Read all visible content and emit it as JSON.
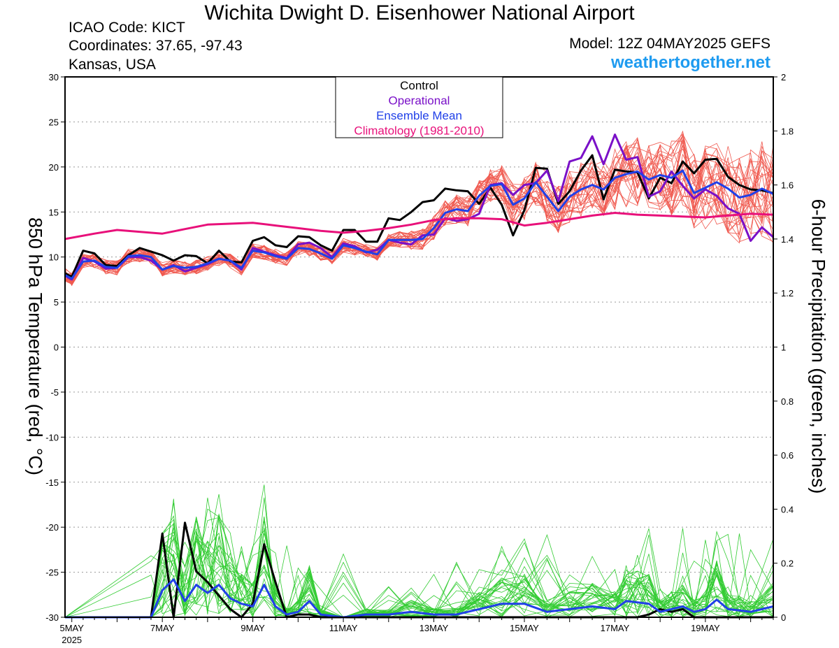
{
  "header": {
    "title": "Wichita Dwight D. Eisenhower National Airport",
    "icao": "ICAO Code: KICT",
    "coords": "Coordinates: 37.65, -97.43",
    "region": "Kansas, USA",
    "model": "Model: 12Z 04MAY2025 GEFS",
    "site": "weathertogether.net"
  },
  "colors": {
    "members": "#f05a50",
    "precip_members": "#33cc33",
    "control": "#000000",
    "operational": "#7a10c8",
    "mean": "#2040e8",
    "climatology": "#e8107a",
    "site": "#1e9bf0"
  },
  "chart_data": {
    "type": "line",
    "xlabel": "",
    "ylabel": "850 hPa Temperature (red, °C)",
    "y2label": "6-hour Precipitation (green, inches)",
    "xlim": [
      4.85,
      20.5
    ],
    "ylim": [
      -30,
      30
    ],
    "y2lim": [
      0,
      2
    ],
    "x_tick_labels": [
      "5MAY",
      "7MAY",
      "9MAY",
      "11MAY",
      "13MAY",
      "15MAY",
      "17MAY",
      "19MAY"
    ],
    "x_ticks": [
      5,
      7,
      9,
      11,
      13,
      15,
      17,
      19
    ],
    "x_sublabel": "2025",
    "y_ticks": [
      -30,
      -25,
      -20,
      -15,
      -10,
      -5,
      0,
      5,
      10,
      15,
      20,
      25,
      30
    ],
    "y2_ticks": [
      0,
      0.2,
      0.4,
      0.6,
      0.8,
      1,
      1.2,
      1.4,
      1.6,
      1.8,
      2
    ],
    "grid": true,
    "legend": {
      "placement": "top-center",
      "entries": [
        "Control",
        "Operational",
        "Ensemble Mean",
        "Climatology (1981-2010)"
      ]
    },
    "series": [
      {
        "name": "Control",
        "axis": "temp",
        "x": [
          4.85,
          5,
          5.25,
          5.5,
          5.75,
          6,
          6.25,
          6.5,
          6.75,
          7,
          7.25,
          7.5,
          7.75,
          8,
          8.25,
          8.5,
          8.75,
          9,
          9.25,
          9.5,
          9.75,
          10,
          10.25,
          10.5,
          10.75,
          11,
          11.25,
          11.5,
          11.75,
          12,
          12.25,
          12.5,
          12.75,
          13,
          13.25,
          13.5,
          13.75,
          14,
          14.25,
          14.5,
          14.75,
          15,
          15.25,
          15.5,
          15.75,
          16,
          16.25,
          16.5,
          16.75,
          17,
          17.25,
          17.5,
          17.75,
          18,
          18.25,
          18.5,
          18.75,
          19,
          19.25,
          19.5,
          19.75,
          20,
          20.25,
          20.5
        ],
        "values": [
          8.2,
          7.8,
          10.7,
          10.4,
          9.1,
          9,
          10.2,
          11,
          10.6,
          10.2,
          9.6,
          10.2,
          10.1,
          9.3,
          10.7,
          9.5,
          9.4,
          11.8,
          12.2,
          11.3,
          11.1,
          12.3,
          12.2,
          11.3,
          10.7,
          13,
          13,
          11.7,
          11.7,
          14.3,
          14.1,
          15,
          16.1,
          16.3,
          17.6,
          17.4,
          17.3,
          15.9,
          17.7,
          15.8,
          12.4,
          15.2,
          19.9,
          19.8,
          15.9,
          17.3,
          19.6,
          21.3,
          16.4,
          19.7,
          19.5,
          19.4,
          16.5,
          18.8,
          18.2,
          20.6,
          19.3,
          20.8,
          20.9,
          18.9,
          18,
          17.5,
          17.4,
          17.1
        ]
      },
      {
        "name": "Operational",
        "axis": "temp",
        "x": [
          4.85,
          5,
          5.25,
          5.5,
          5.75,
          6,
          6.25,
          6.5,
          6.75,
          7,
          7.25,
          7.5,
          7.75,
          8,
          8.25,
          8.5,
          8.75,
          9,
          9.25,
          9.5,
          9.75,
          10,
          10.25,
          10.5,
          10.75,
          11,
          11.25,
          11.5,
          11.75,
          12,
          12.25,
          12.5,
          12.75,
          13,
          13.25,
          13.5,
          13.75,
          14,
          14.25,
          14.5,
          14.75,
          15,
          15.25,
          15.5,
          15.75,
          16,
          16.25,
          16.5,
          16.75,
          17,
          17.25,
          17.5,
          17.75,
          18,
          18.25,
          18.5,
          18.75,
          19,
          19.25,
          19.5,
          19.75,
          20,
          20.25,
          20.5
        ],
        "values": [
          7.9,
          7.5,
          9.9,
          9.5,
          8.7,
          8.8,
          10,
          10,
          9.6,
          8.6,
          9.1,
          8.4,
          8.8,
          9.2,
          9.8,
          9.6,
          8.6,
          11,
          10.6,
          10.2,
          9.9,
          11.4,
          11.6,
          11,
          10,
          11.5,
          11.2,
          10.5,
          10.8,
          11.9,
          11.6,
          11.4,
          12.4,
          12.5,
          14.3,
          14,
          14.2,
          14.8,
          18,
          18.2,
          16.9,
          18,
          18.2,
          19.6,
          16.2,
          20.6,
          21,
          23.4,
          20.3,
          23.6,
          20.8,
          21.1,
          16.7,
          17.3,
          19.5,
          17.9,
          16.5,
          17.5,
          16.8,
          15.4,
          14.8,
          11.8,
          13.3,
          12.2
        ]
      },
      {
        "name": "Ensemble Mean",
        "axis": "temp",
        "x": [
          4.85,
          5,
          5.25,
          5.5,
          5.75,
          6,
          6.25,
          6.5,
          6.75,
          7,
          7.25,
          7.5,
          7.75,
          8,
          8.25,
          8.5,
          8.75,
          9,
          9.25,
          9.5,
          9.75,
          10,
          10.25,
          10.5,
          10.75,
          11,
          11.25,
          11.5,
          11.75,
          12,
          12.25,
          12.5,
          12.75,
          13,
          13.25,
          13.5,
          13.75,
          14,
          14.25,
          14.5,
          14.75,
          15,
          15.25,
          15.5,
          15.75,
          16,
          16.25,
          16.5,
          16.75,
          17,
          17.25,
          17.5,
          17.75,
          18,
          18.25,
          18.5,
          18.75,
          19,
          19.25,
          19.5,
          19.75,
          20,
          20.25,
          20.5
        ],
        "values": [
          8,
          7.6,
          9.5,
          9.6,
          8.9,
          8.8,
          10.1,
          10.2,
          10,
          8.6,
          9,
          8.8,
          8.9,
          9.3,
          9.8,
          9.6,
          8.8,
          10.7,
          10.5,
          10.1,
          9.8,
          11,
          10.9,
          10.4,
          9.8,
          11.3,
          11,
          10.6,
          10.3,
          11.9,
          11.9,
          11.9,
          12,
          13.2,
          14.9,
          15.3,
          15.1,
          16.8,
          17.9,
          18.1,
          15.8,
          16.5,
          18.3,
          16.7,
          15.1,
          16.7,
          17.5,
          18,
          17.5,
          18.8,
          19.2,
          19.5,
          18.6,
          19.1,
          18.8,
          19.6,
          17.1,
          17.7,
          18.3,
          17.6,
          16.6,
          16.9,
          17.6,
          17
        ]
      },
      {
        "name": "Climatology (1981-2010)",
        "axis": "temp",
        "x": [
          4.85,
          5.5,
          6,
          6.5,
          7,
          7.5,
          8,
          8.5,
          9,
          9.5,
          10,
          10.5,
          11,
          11.5,
          12,
          12.5,
          13,
          13.5,
          14,
          14.5,
          15,
          15.5,
          16,
          16.5,
          17,
          17.5,
          18,
          18.5,
          19,
          19.5,
          20,
          20.5
        ],
        "values": [
          12,
          12.6,
          13,
          12.8,
          12.6,
          13.1,
          13.6,
          13.7,
          13.8,
          13.5,
          13.2,
          12.9,
          12.7,
          12.9,
          13.2,
          13.6,
          14.1,
          14.3,
          14.3,
          14.2,
          13.5,
          13.8,
          14.2,
          14.6,
          14.9,
          14.7,
          14.6,
          14.5,
          14.4,
          14.6,
          14.8,
          14.7
        ]
      }
    ],
    "precip_series": [
      {
        "name": "Control",
        "axis": "precip",
        "x": [
          4.85,
          6.75,
          7,
          7.25,
          7.5,
          7.75,
          8,
          8.25,
          8.5,
          8.75,
          9,
          9.25,
          9.5,
          9.75,
          10,
          10.25,
          10.5,
          11,
          11.5,
          12,
          12.5,
          13,
          13.5,
          14,
          14.5,
          15,
          15.5,
          16,
          16.5,
          17,
          17.25,
          17.5,
          17.75,
          18,
          18.25,
          18.5,
          18.75,
          19,
          19.5,
          20,
          20.5
        ],
        "values": [
          0,
          0,
          0.31,
          0,
          0.35,
          0.17,
          0.13,
          0.08,
          0.03,
          0,
          0.05,
          0.27,
          0.13,
          0,
          0.01,
          0.01,
          0,
          0,
          0,
          0,
          0,
          0,
          0,
          0,
          0,
          0,
          0,
          0,
          0,
          0,
          0,
          0,
          0.01,
          0.03,
          0.02,
          0.03,
          0,
          0,
          0,
          0,
          0
        ]
      },
      {
        "name": "Ensemble Mean",
        "axis": "precip",
        "x": [
          4.85,
          6.75,
          7,
          7.25,
          7.5,
          7.75,
          8,
          8.25,
          8.5,
          8.75,
          9,
          9.25,
          9.5,
          9.75,
          10,
          10.25,
          10.5,
          11,
          11.5,
          12,
          12.5,
          13,
          13.5,
          14,
          14.5,
          15,
          15.5,
          16,
          16.5,
          17,
          17.25,
          17.5,
          17.75,
          18,
          18.25,
          18.5,
          18.75,
          19,
          19.25,
          19.5,
          19.75,
          20,
          20.5
        ],
        "values": [
          0,
          0,
          0.1,
          0.14,
          0.06,
          0.12,
          0.09,
          0.12,
          0.07,
          0.05,
          0.04,
          0.12,
          0.04,
          0.01,
          0.02,
          0.06,
          0.01,
          0,
          0.01,
          0.01,
          0.02,
          0.01,
          0.01,
          0.03,
          0.05,
          0.05,
          0.02,
          0.03,
          0.04,
          0.03,
          0.06,
          0.055,
          0.05,
          0.02,
          0.03,
          0.04,
          0.02,
          0.03,
          0.065,
          0.03,
          0.025,
          0.02,
          0.04
        ]
      }
    ]
  }
}
